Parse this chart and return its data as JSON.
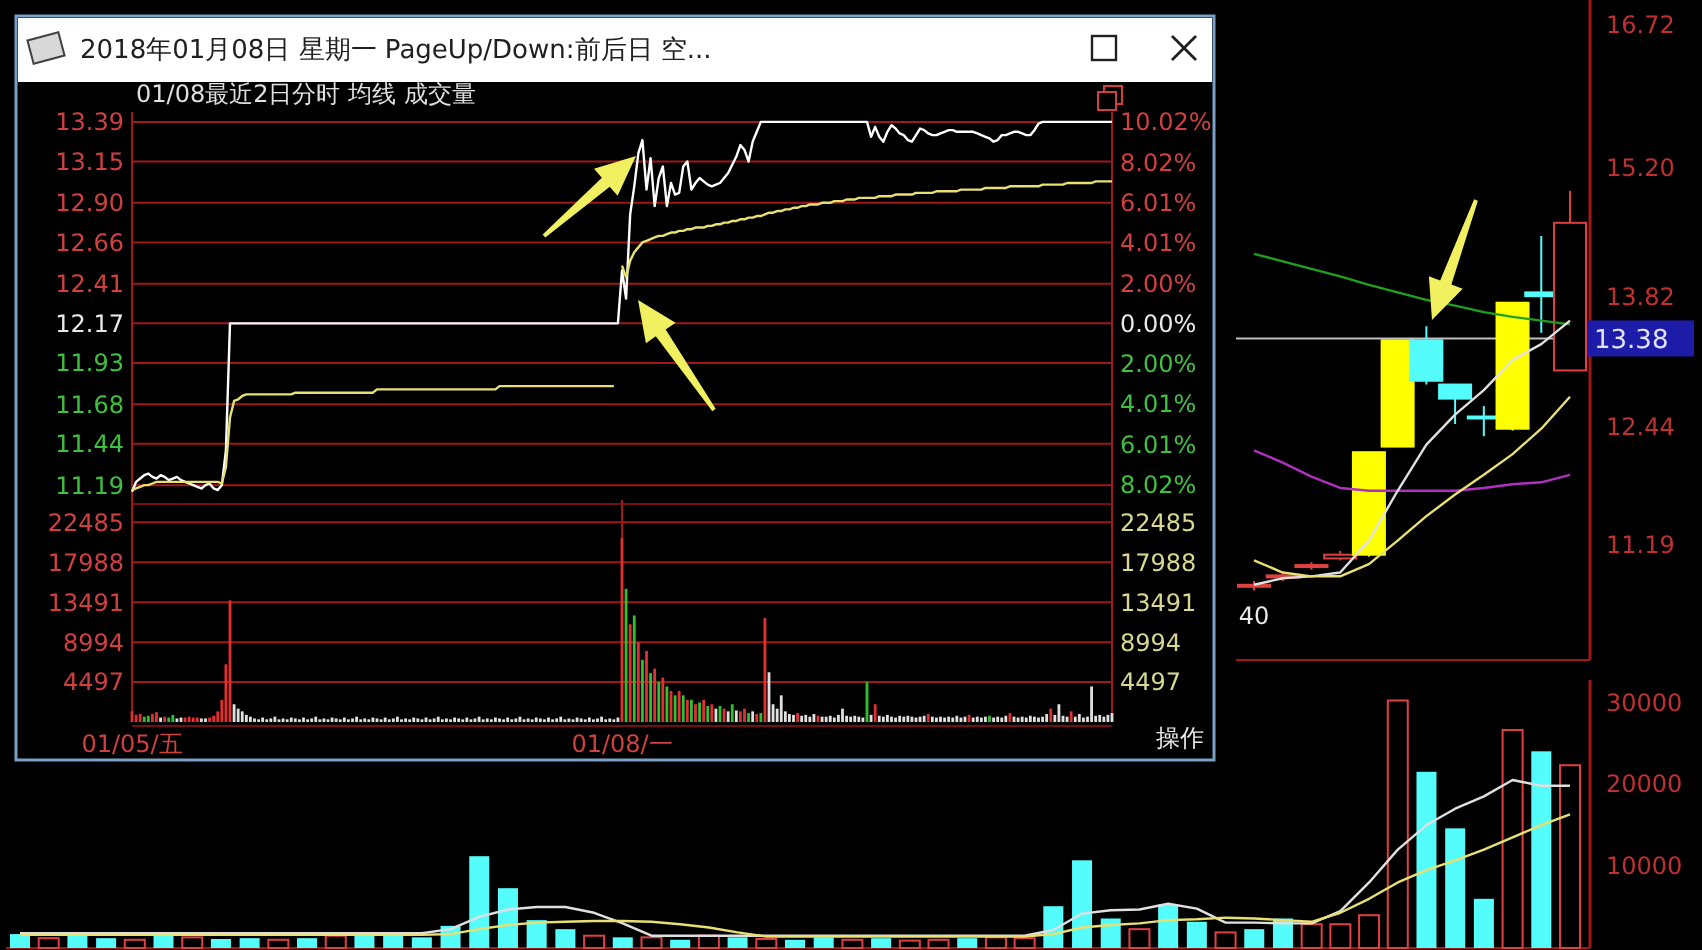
{
  "chart_data": [
    {
      "type": "line",
      "title": "2018年01月08日 星期一 PageUp/Down:前后日 空...",
      "subtitle": "01/08最近2日分时 均线 成交量",
      "categories": [
        null,
        null,
        null,
        null,
        null,
        null,
        null,
        null,
        null,
        null,
        null,
        null,
        null,
        null,
        null,
        null,
        null,
        null,
        null,
        null,
        null,
        null,
        null,
        null,
        null,
        null,
        null,
        null,
        null,
        null,
        null,
        null,
        null,
        null,
        null,
        null,
        null,
        null,
        null,
        null,
        null,
        null,
        null,
        null,
        null,
        null,
        null,
        null,
        null,
        null,
        null,
        null,
        null,
        null,
        null,
        null,
        null,
        null,
        null,
        null,
        null,
        null,
        null,
        null,
        null,
        null,
        null,
        null,
        null,
        null,
        null,
        null,
        null,
        null,
        null,
        null,
        null,
        null,
        null,
        null,
        null,
        null,
        null,
        null,
        null,
        null,
        null,
        null,
        null,
        null,
        null,
        null,
        null,
        null,
        null,
        null,
        null,
        null,
        null,
        null,
        null,
        null,
        null,
        null,
        null,
        null,
        null,
        null,
        null,
        null,
        null,
        null,
        null,
        null,
        null,
        null,
        null,
        null,
        null,
        null,
        null,
        null,
        null,
        null,
        null,
        null,
        null,
        null,
        null,
        null,
        null,
        null,
        null,
        null,
        null,
        null,
        null,
        null,
        null,
        null,
        null,
        null,
        null,
        null,
        null,
        null,
        null,
        null,
        null,
        null,
        null,
        null,
        null,
        null,
        null,
        null,
        null,
        null,
        null,
        null,
        null,
        null,
        null,
        null,
        null,
        null,
        null,
        null,
        null,
        null,
        null,
        null,
        null,
        null,
        null,
        null,
        null,
        null,
        null,
        null,
        null,
        null,
        null,
        null,
        null,
        null,
        null,
        null,
        null,
        null,
        null,
        null,
        null,
        null,
        null,
        null,
        null,
        null,
        null,
        null,
        null,
        null,
        null,
        null,
        null,
        null,
        null,
        null,
        null,
        null,
        null,
        null,
        null,
        null,
        null,
        null,
        null,
        null,
        null,
        null,
        null,
        null,
        null,
        null,
        null,
        null,
        null,
        null,
        null,
        null,
        null,
        null,
        null,
        null,
        null,
        null,
        null,
        null,
        null,
        null,
        null
      ],
      "ylim": [
        11.1,
        13.45
      ],
      "yticks": [
        {
          "value": 13.39,
          "label": "13.39"
        },
        {
          "value": 13.15,
          "label": "13.15"
        },
        {
          "value": 12.9,
          "label": "12.90"
        },
        {
          "value": 12.66,
          "label": "12.66"
        },
        {
          "value": 12.41,
          "label": "12.41"
        },
        {
          "value": 12.17,
          "label": "12.17"
        },
        {
          "value": 11.93,
          "label": "11.93"
        },
        {
          "value": 11.68,
          "label": "11.68"
        },
        {
          "value": 11.44,
          "label": "11.44"
        },
        {
          "value": 11.19,
          "label": "11.19"
        }
      ],
      "y2lim": [
        -8.79,
        10.52
      ],
      "y2ticks": [
        {
          "value": 10.02,
          "label": "10.02%"
        },
        {
          "value": 8.02,
          "label": "8.02%"
        },
        {
          "value": 6.01,
          "label": "6.01%"
        },
        {
          "value": 4.01,
          "label": "4.01%"
        },
        {
          "value": 2,
          "label": "2.00%"
        },
        {
          "value": 0,
          "label": "0.00%"
        },
        {
          "value": -2,
          "label": "2.00%"
        },
        {
          "value": -4.01,
          "label": "4.01%"
        },
        {
          "value": -6.01,
          "label": "6.01%"
        },
        {
          "value": -8.02,
          "label": "8.02%"
        }
      ],
      "grid": "y",
      "tick_labels": "y",
      "series": [
        {
          "color": "#ffffff",
          "values": [
            11.15,
            11.21,
            11.23,
            11.25,
            11.26,
            11.24,
            11.23,
            11.25,
            11.24,
            11.22,
            11.23,
            11.24,
            11.22,
            11.21,
            11.2,
            11.19,
            11.18,
            11.17,
            11.19,
            11.2,
            11.17,
            11.16,
            11.19,
            11.4,
            12.17,
            12.17,
            12.17,
            12.17,
            12.17,
            12.17,
            12.17,
            12.17,
            12.17,
            12.17,
            12.17,
            12.17,
            12.17,
            12.17,
            12.17,
            12.17,
            12.17,
            12.17,
            12.17,
            12.17,
            12.17,
            12.17,
            12.17,
            12.17,
            12.17,
            12.17,
            12.17,
            12.17,
            12.17,
            12.17,
            12.17,
            12.17,
            12.17,
            12.17,
            12.17,
            12.17,
            12.17,
            12.17,
            12.17,
            12.17,
            12.17,
            12.17,
            12.17,
            12.17,
            12.17,
            12.17,
            12.17,
            12.17,
            12.17,
            12.17,
            12.17,
            12.17,
            12.17,
            12.17,
            12.17,
            12.17,
            12.17,
            12.17,
            12.17,
            12.17,
            12.17,
            12.17,
            12.17,
            12.17,
            12.17,
            12.17,
            12.17,
            12.17,
            12.17,
            12.17,
            12.17,
            12.17,
            12.17,
            12.17,
            12.17,
            12.17,
            12.17,
            12.17,
            12.17,
            12.17,
            12.17,
            12.17,
            12.17,
            12.17,
            12.17,
            12.17,
            12.17,
            12.17,
            12.17,
            12.17,
            12.17,
            12.17,
            12.17,
            12.17,
            12.17,
            12.17,
            12.49,
            12.32,
            12.83,
            13.0,
            13.2,
            13.28,
            12.98,
            13.17,
            12.88,
            13.05,
            13.12,
            12.88,
            13.02,
            12.95,
            12.96,
            13.12,
            13.15,
            12.98,
            13.02,
            13.05,
            13.03,
            13.01,
            13.0,
            13.01,
            13.02,
            13.05,
            13.08,
            13.13,
            13.18,
            13.25,
            13.22,
            13.15,
            13.27,
            13.33,
            13.39,
            13.39,
            13.39,
            13.39,
            13.39,
            13.39,
            13.39,
            13.39,
            13.39,
            13.39,
            13.39,
            13.39,
            13.39,
            13.39,
            13.39,
            13.39,
            13.39,
            13.39,
            13.39,
            13.39,
            13.39,
            13.39,
            13.39,
            13.39,
            13.39,
            13.39,
            13.39,
            13.3,
            13.36,
            13.3,
            13.27,
            13.33,
            13.37,
            13.35,
            13.32,
            13.31,
            13.28,
            13.27,
            13.31,
            13.35,
            13.34,
            13.32,
            13.31,
            13.31,
            13.32,
            13.33,
            13.34,
            13.34,
            13.33,
            13.33,
            13.33,
            13.33,
            13.33,
            13.32,
            13.31,
            13.3,
            13.29,
            13.27,
            13.28,
            13.31,
            13.31,
            13.32,
            13.33,
            13.33,
            13.32,
            13.31,
            13.31,
            13.34,
            13.38,
            13.39,
            13.39,
            13.39,
            13.39,
            13.39,
            13.39,
            13.39,
            13.39,
            13.39,
            13.39,
            13.39,
            13.39,
            13.39,
            13.39,
            13.39,
            13.39,
            13.39,
            13.39
          ]
        },
        {
          "color": "#e8e070",
          "values": [
            11.16,
            11.17,
            11.18,
            11.19,
            11.19,
            11.2,
            11.21,
            11.21,
            11.21,
            11.21,
            11.21,
            11.21,
            11.21,
            11.21,
            11.21,
            11.21,
            11.21,
            11.21,
            11.21,
            11.21,
            11.21,
            11.21,
            11.2,
            11.3,
            11.6,
            11.7,
            11.71,
            11.73,
            11.74,
            11.74,
            11.74,
            11.74,
            11.74,
            11.74,
            11.74,
            11.74,
            11.74,
            11.74,
            11.74,
            11.74,
            11.75,
            11.75,
            11.75,
            11.75,
            11.75,
            11.75,
            11.75,
            11.75,
            11.75,
            11.75,
            11.75,
            11.75,
            11.75,
            11.75,
            11.75,
            11.75,
            11.75,
            11.75,
            11.75,
            11.75,
            11.77,
            11.77,
            11.77,
            11.77,
            11.77,
            11.77,
            11.77,
            11.77,
            11.77,
            11.77,
            11.77,
            11.77,
            11.77,
            11.77,
            11.77,
            11.77,
            11.77,
            11.77,
            11.77,
            11.77,
            11.77,
            11.77,
            11.77,
            11.77,
            11.77,
            11.77,
            11.77,
            11.77,
            11.77,
            11.77,
            11.79,
            11.79,
            11.79,
            11.79,
            11.79,
            11.79,
            11.79,
            11.79,
            11.79,
            11.79,
            11.79,
            11.79,
            11.79,
            11.79,
            11.79,
            11.79,
            11.79,
            11.79,
            11.79,
            11.79,
            11.79,
            11.79,
            11.79,
            11.79,
            11.79,
            11.79,
            11.79,
            11.79,
            11.79,
            null,
            12.52,
            12.45,
            12.55,
            12.6,
            12.63,
            12.66,
            12.67,
            12.68,
            12.69,
            12.7,
            12.7,
            12.71,
            12.72,
            12.72,
            12.73,
            12.73,
            12.74,
            12.74,
            12.75,
            12.75,
            12.75,
            12.76,
            12.76,
            12.77,
            12.77,
            12.78,
            12.78,
            12.79,
            12.79,
            12.8,
            12.8,
            12.81,
            12.81,
            12.82,
            12.82,
            12.83,
            12.84,
            12.84,
            12.85,
            12.85,
            12.86,
            12.86,
            12.87,
            12.87,
            12.88,
            12.88,
            12.89,
            12.89,
            12.89,
            12.9,
            12.9,
            12.9,
            12.91,
            12.91,
            12.91,
            12.92,
            12.92,
            12.92,
            12.93,
            12.93,
            12.93,
            12.93,
            12.93,
            12.94,
            12.94,
            12.94,
            12.94,
            12.95,
            12.95,
            12.95,
            12.95,
            12.95,
            12.96,
            12.96,
            12.96,
            12.96,
            12.96,
            12.97,
            12.97,
            12.97,
            12.97,
            12.97,
            12.97,
            12.98,
            12.98,
            12.98,
            12.98,
            12.98,
            12.98,
            12.99,
            12.99,
            12.99,
            12.99,
            12.99,
            12.99,
            13.0,
            13.0,
            13.0,
            13.0,
            13.0,
            13.0,
            13.0,
            13.0,
            13.01,
            13.01,
            13.01,
            13.01,
            13.01,
            13.01,
            13.02,
            13.02,
            13.02,
            13.02,
            13.02,
            13.02,
            13.02,
            13.03,
            13.03,
            13.03,
            13.03,
            13.03
          ]
        }
      ]
    },
    {
      "type": "bar",
      "categories": [
        "01/05/五",
        null,
        null,
        null,
        null,
        null,
        null,
        null,
        null,
        null,
        null,
        null,
        null,
        null,
        null,
        null,
        null,
        null,
        null,
        null,
        null,
        null,
        null,
        null,
        null,
        null,
        null,
        null,
        null,
        null,
        null,
        null,
        null,
        null,
        null,
        null,
        null,
        null,
        null,
        null,
        null,
        null,
        null,
        null,
        null,
        null,
        null,
        null,
        null,
        null,
        null,
        null,
        null,
        null,
        null,
        null,
        null,
        null,
        null,
        null,
        null,
        null,
        null,
        null,
        null,
        null,
        null,
        null,
        null,
        null,
        null,
        null,
        null,
        null,
        null,
        null,
        null,
        null,
        null,
        null,
        null,
        null,
        null,
        null,
        null,
        null,
        null,
        null,
        null,
        null,
        null,
        null,
        null,
        null,
        null,
        null,
        null,
        null,
        null,
        null,
        null,
        null,
        null,
        null,
        null,
        null,
        null,
        null,
        null,
        null,
        null,
        null,
        null,
        null,
        null,
        null,
        null,
        null,
        null,
        null,
        "01/08/一",
        null,
        null,
        null,
        null,
        null,
        null,
        null,
        null,
        null,
        null,
        null,
        null,
        null,
        null,
        null,
        null,
        null,
        null,
        null,
        null,
        null,
        null,
        null,
        null,
        null,
        null,
        null,
        null,
        null,
        null,
        null,
        null,
        null,
        null,
        null,
        null,
        null,
        null,
        null,
        null,
        null,
        null,
        null,
        null,
        null,
        null,
        null,
        null,
        null,
        null,
        null,
        null,
        null,
        null,
        null,
        null,
        null,
        null,
        null,
        null,
        null,
        null,
        null,
        null,
        null,
        null,
        null,
        null,
        null,
        null,
        null,
        null,
        null,
        null,
        null,
        null,
        null,
        null,
        null,
        null,
        null,
        null,
        null,
        null,
        null,
        null,
        null,
        null,
        null,
        null,
        null,
        null,
        null,
        null,
        null,
        null,
        null,
        null,
        null,
        null,
        null,
        null,
        null,
        null,
        null,
        null,
        null,
        null,
        null,
        null,
        null,
        null,
        null,
        null,
        null,
        null,
        null,
        null,
        null,
        null
      ],
      "ylim": [
        0,
        25000
      ],
      "yticks": [
        4497,
        8994,
        13491,
        17988,
        22485
      ],
      "y2lim": [
        0,
        25000
      ],
      "y2ticks": [
        4497,
        8994,
        13491,
        17988,
        22485
      ],
      "grid": true,
      "annotations": [
        "操作"
      ],
      "values": [
        1200,
        800,
        900,
        600,
        700,
        900,
        1100,
        500,
        600,
        500,
        800,
        400,
        500,
        500,
        600,
        500,
        500,
        400,
        400,
        500,
        700,
        1200,
        2500,
        6500,
        13700,
        2000,
        1500,
        1200,
        800,
        600,
        400,
        300,
        500,
        300,
        400,
        600,
        300,
        400,
        300,
        500,
        400,
        300,
        500,
        300,
        400,
        600,
        300,
        400,
        300,
        500,
        400,
        300,
        500,
        300,
        400,
        600,
        300,
        400,
        300,
        500,
        400,
        300,
        500,
        300,
        400,
        600,
        300,
        400,
        300,
        500,
        400,
        300,
        500,
        300,
        400,
        600,
        300,
        400,
        300,
        500,
        400,
        300,
        500,
        300,
        400,
        600,
        300,
        400,
        300,
        500,
        400,
        300,
        500,
        300,
        400,
        600,
        300,
        400,
        300,
        500,
        400,
        300,
        500,
        300,
        400,
        600,
        300,
        400,
        300,
        500,
        400,
        300,
        500,
        300,
        400,
        600,
        300,
        400,
        300,
        500,
        20700,
        15000,
        11000,
        12000,
        9000,
        7000,
        8000,
        5500,
        6000,
        4500,
        5000,
        4000,
        3500,
        3000,
        3500,
        3000,
        2500,
        2500,
        2000,
        2200,
        2500,
        1800,
        2000,
        1500,
        1800,
        1500,
        1200,
        2000,
        1300,
        1200,
        1500,
        1000,
        1200,
        900,
        1000,
        11700,
        5600,
        2000,
        1500,
        3000,
        1200,
        900,
        800,
        1000,
        700,
        800,
        600,
        900,
        700,
        600,
        600,
        700,
        500,
        800,
        1500,
        700,
        600,
        700,
        600,
        500,
        4500,
        800,
        2000,
        700,
        600,
        800,
        600,
        500,
        700,
        600,
        700,
        600,
        500,
        600,
        700,
        900,
        600,
        500,
        600,
        500,
        600,
        500,
        700,
        500,
        600,
        800,
        500,
        600,
        500,
        600,
        700,
        500,
        600,
        500,
        700,
        1000,
        600,
        500,
        600,
        500,
        700,
        600,
        500,
        600,
        900,
        1500,
        800,
        2000,
        700,
        600,
        1200,
        600,
        900,
        500,
        600,
        4000,
        700,
        800,
        600,
        800,
        1000
      ],
      "colors": [
        "#e03030",
        "#e03030",
        "#e03030",
        "#30c030",
        "#30c030",
        "#e03030",
        "#e03030",
        "#e0e0e0",
        "#e03030",
        "#30c030",
        "#30c030",
        "#e0e0e0",
        "#e0e0e0",
        "#e03030",
        "#e03030",
        "#e03030",
        "#e03030",
        "#e0e0e0",
        "#e0e0e0",
        "#e03030",
        "#e03030",
        "#e03030",
        "#e03030",
        "#e03030",
        "#e03030",
        "#e0e0e0",
        "#e0e0e0",
        "#e0e0e0",
        "#e0e0e0",
        "#e0e0e0",
        "#e0e0e0",
        "#e0e0e0",
        "#e0e0e0",
        "#e0e0e0",
        "#e0e0e0",
        "#e0e0e0",
        "#e0e0e0",
        "#e0e0e0",
        "#e0e0e0",
        "#e0e0e0",
        "#e0e0e0",
        "#e0e0e0",
        "#e0e0e0",
        "#e0e0e0",
        "#e0e0e0",
        "#e0e0e0",
        "#e0e0e0",
        "#e0e0e0",
        "#e0e0e0",
        "#e0e0e0",
        "#e0e0e0",
        "#e0e0e0",
        "#e0e0e0",
        "#e0e0e0",
        "#e0e0e0",
        "#e0e0e0",
        "#e0e0e0",
        "#e0e0e0",
        "#e0e0e0",
        "#e0e0e0",
        "#e0e0e0",
        "#e0e0e0",
        "#e0e0e0",
        "#e0e0e0",
        "#e0e0e0",
        "#e0e0e0",
        "#e0e0e0",
        "#e0e0e0",
        "#e0e0e0",
        "#e0e0e0",
        "#e0e0e0",
        "#e0e0e0",
        "#e0e0e0",
        "#e0e0e0",
        "#e0e0e0",
        "#e0e0e0",
        "#e0e0e0",
        "#e0e0e0",
        "#e0e0e0",
        "#e0e0e0",
        "#e0e0e0",
        "#e0e0e0",
        "#e0e0e0",
        "#e0e0e0",
        "#e0e0e0",
        "#e0e0e0",
        "#e0e0e0",
        "#e0e0e0",
        "#e0e0e0",
        "#e0e0e0",
        "#e0e0e0",
        "#e0e0e0",
        "#e0e0e0",
        "#e0e0e0",
        "#e0e0e0",
        "#e0e0e0",
        "#e0e0e0",
        "#e0e0e0",
        "#e0e0e0",
        "#e0e0e0",
        "#e0e0e0",
        "#e0e0e0",
        "#e0e0e0",
        "#e0e0e0",
        "#e0e0e0",
        "#e0e0e0",
        "#e0e0e0",
        "#e0e0e0",
        "#e0e0e0",
        "#e0e0e0",
        "#e0e0e0",
        "#e0e0e0",
        "#e0e0e0",
        "#e0e0e0",
        "#e0e0e0",
        "#e0e0e0",
        "#e0e0e0",
        "#e0e0e0",
        "#e0e0e0",
        "#e0e0e0",
        "#e03030",
        "#30c030",
        "#e03030",
        "#30c030",
        "#e03030",
        "#30c030",
        "#e03030",
        "#30c030",
        "#e03030",
        "#30c030",
        "#e03030",
        "#30c030",
        "#e03030",
        "#30c030",
        "#e03030",
        "#30c030",
        "#e03030",
        "#30c030",
        "#e03030",
        "#30c030",
        "#e03030",
        "#30c030",
        "#e03030",
        "#e0e0e0",
        "#30c030",
        "#e03030",
        "#e0e0e0",
        "#30c030",
        "#e0e0e0",
        "#e03030",
        "#e03030",
        "#30c030",
        "#e0e0e0",
        "#e03030",
        "#30c030",
        "#e03030",
        "#e0e0e0",
        "#e0e0e0",
        "#e0e0e0",
        "#e0e0e0",
        "#e0e0e0",
        "#e0e0e0",
        "#e0e0e0",
        "#e03030",
        "#e0e0e0",
        "#e0e0e0",
        "#e0e0e0",
        "#e0e0e0",
        "#e03030",
        "#e0e0e0",
        "#e0e0e0",
        "#e0e0e0",
        "#e0e0e0",
        "#e0e0e0",
        "#e0e0e0",
        "#e0e0e0",
        "#e0e0e0",
        "#e0e0e0",
        "#e0e0e0",
        "#e0e0e0",
        "#30c030",
        "#e0e0e0",
        "#e03030",
        "#e0e0e0",
        "#e0e0e0",
        "#e0e0e0",
        "#e0e0e0",
        "#e0e0e0",
        "#e0e0e0",
        "#e0e0e0",
        "#e0e0e0",
        "#e0e0e0",
        "#e0e0e0",
        "#e0e0e0",
        "#e0e0e0",
        "#e03030",
        "#e0e0e0",
        "#e0e0e0",
        "#e0e0e0",
        "#e0e0e0",
        "#e0e0e0",
        "#e0e0e0",
        "#e0e0e0",
        "#e0e0e0",
        "#e0e0e0",
        "#e03030",
        "#e0e0e0",
        "#e0e0e0",
        "#e0e0e0",
        "#e0e0e0",
        "#30c030",
        "#e0e0e0",
        "#e0e0e0",
        "#e0e0e0",
        "#e0e0e0",
        "#e03030",
        "#e0e0e0",
        "#e0e0e0",
        "#e0e0e0",
        "#e0e0e0",
        "#e0e0e0",
        "#e0e0e0",
        "#e0e0e0",
        "#e0e0e0",
        "#e0e0e0",
        "#e03030",
        "#e0e0e0",
        "#e0e0e0",
        "#e0e0e0",
        "#e0e0e0",
        "#e03030",
        "#e0e0e0",
        "#e0e0e0",
        "#e0e0e0",
        "#e0e0e0",
        "#e0e0e0",
        "#e0e0e0",
        "#e0e0e0",
        "#e0e0e0",
        "#e0e0e0",
        "#e0e0e0"
      ]
    },
    {
      "type": "candlestick",
      "categories": [
        null,
        null,
        null,
        null,
        null,
        null,
        null,
        null,
        null,
        null,
        null,
        null
      ],
      "ohlc": [
        [
          10.76,
          10.8,
          10.7,
          10.76
        ],
        [
          10.84,
          10.88,
          10.8,
          10.86
        ],
        [
          10.95,
          11.0,
          10.92,
          10.97
        ],
        [
          11.04,
          11.12,
          11.02,
          11.08
        ],
        [
          11.08,
          12.17,
          11.06,
          12.17
        ],
        [
          12.23,
          13.36,
          12.23,
          13.36
        ],
        [
          13.36,
          13.51,
          12.89,
          12.93
        ],
        [
          12.89,
          12.89,
          12.47,
          12.74
        ],
        [
          12.55,
          12.66,
          12.34,
          12.55
        ],
        [
          12.42,
          13.76,
          12.4,
          13.76
        ],
        [
          13.87,
          14.47,
          13.44,
          13.83
        ],
        [
          13.04,
          14.95,
          13.04,
          14.61
        ]
      ],
      "colors": [
        "#e04040",
        "#e04040",
        "#e04040",
        "#e04040",
        "#ffff00",
        "#ffff00",
        "#54fcfc",
        "#54fcfc",
        "#54fcfc",
        "#ffff00",
        "#54fcfc",
        "#e04040"
      ],
      "ylim": [
        9.96,
        16.98
      ],
      "yticks": [
        16.72,
        {
          "value": 15.2,
          "label": "15.20"
        },
        13.82,
        12.44,
        11.19
      ],
      "tick_labels": "y",
      "series": [
        {
          "type": "line",
          "color": "#20a020",
          "values": [
            14.28,
            14.2,
            14.12,
            14.04,
            13.95,
            13.87,
            13.79,
            13.73,
            13.66,
            13.61,
            13.57,
            13.53
          ]
        },
        {
          "type": "line",
          "color": "#b030c0",
          "values": [
            12.19,
            12.06,
            11.91,
            11.79,
            11.76,
            11.76,
            11.76,
            11.76,
            11.79,
            11.83,
            11.85,
            11.93
          ]
        },
        {
          "type": "line",
          "color": "#e0e0e0",
          "values": [
            10.76,
            10.83,
            10.85,
            10.89,
            11.23,
            11.76,
            12.25,
            12.57,
            12.83,
            13.15,
            13.32,
            13.57
          ]
        },
        {
          "type": "line",
          "color": "#e8e070",
          "values": [
            11.02,
            10.89,
            10.85,
            10.85,
            10.98,
            11.23,
            11.49,
            11.72,
            11.93,
            12.15,
            12.42,
            12.76
          ]
        }
      ],
      "ref_lines": [
        {
          "axis": "y",
          "value": 13.38,
          "label": "13.38"
        }
      ],
      "annotations": [
        "40"
      ]
    },
    {
      "type": "bar",
      "categories": [
        null,
        null,
        null,
        null,
        null,
        null,
        null,
        null,
        null,
        null,
        null,
        null,
        null,
        null,
        null,
        null,
        null,
        null,
        null,
        null,
        null,
        null,
        null,
        null,
        null,
        null,
        null,
        null,
        null,
        null,
        null,
        null,
        null,
        null,
        null,
        null,
        null,
        null,
        null,
        null,
        null,
        null,
        null,
        null,
        null,
        null,
        null,
        null,
        null,
        null,
        null,
        null,
        null,
        null,
        null
      ],
      "ylim": [
        0,
        32700
      ],
      "yticks": [
        10000,
        20000,
        30000
      ],
      "tick_labels": "y",
      "series": [
        {
          "type": "bar",
          "values": [
            1700,
            1200,
            1500,
            1200,
            1000,
            1800,
            1300,
            1100,
            1200,
            1000,
            1200,
            1500,
            1800,
            1500,
            1300,
            2700,
            11200,
            7300,
            3400,
            2300,
            1500,
            1300,
            1300,
            1000,
            1500,
            1300,
            1100,
            1000,
            1300,
            1000,
            1200,
            900,
            1000,
            1200,
            1300,
            1200,
            5100,
            10700,
            3600,
            2300,
            5300,
            3200,
            1900,
            2300,
            3600,
            2900,
            2900,
            4000,
            30200,
            21500,
            14600,
            6000,
            26600,
            24000,
            22300
          ],
          "colors": [
            "#54fcfc",
            "#e04040",
            "#54fcfc",
            "#54fcfc",
            "#e04040",
            "#54fcfc",
            "#e04040",
            "#54fcfc",
            "#54fcfc",
            "#e04040",
            "#54fcfc",
            "#e04040",
            "#54fcfc",
            "#54fcfc",
            "#54fcfc",
            "#54fcfc",
            "#54fcfc",
            "#54fcfc",
            "#54fcfc",
            "#54fcfc",
            "#e04040",
            "#54fcfc",
            "#e04040",
            "#54fcfc",
            "#e04040",
            "#54fcfc",
            "#e04040",
            "#54fcfc",
            "#54fcfc",
            "#e04040",
            "#54fcfc",
            "#e04040",
            "#e04040",
            "#54fcfc",
            "#e04040",
            "#e04040",
            "#54fcfc",
            "#54fcfc",
            "#54fcfc",
            "#e04040",
            "#54fcfc",
            "#54fcfc",
            "#e04040",
            "#54fcfc",
            "#54fcfc",
            "#e04040",
            "#e04040",
            "#e04040",
            "#e04040",
            "#54fcfc",
            "#54fcfc",
            "#54fcfc",
            "#e04040",
            "#54fcfc",
            "#e04040"
          ]
        },
        {
          "type": "line",
          "color": "#e0e0e0",
          "values": [
            1800,
            1800,
            1800,
            1800,
            1800,
            1800,
            1800,
            1800,
            1800,
            1800,
            1800,
            1800,
            1800,
            1800,
            1800,
            2300,
            3800,
            4700,
            5000,
            5000,
            4300,
            3000,
            1500,
            1500,
            1500,
            1500,
            1500,
            1500,
            1500,
            1500,
            1500,
            1500,
            1500,
            1500,
            1500,
            1500,
            2200,
            4200,
            4600,
            4700,
            5400,
            4800,
            3100,
            3100,
            3000,
            3000,
            4500,
            8000,
            12000,
            15000,
            17000,
            18500,
            20500,
            19800,
            19800
          ]
        },
        {
          "type": "line",
          "color": "#e8e070",
          "values": [
            1600,
            1600,
            1600,
            1600,
            1600,
            1600,
            1600,
            1600,
            1600,
            1600,
            1600,
            1600,
            1600,
            1600,
            1600,
            1700,
            2300,
            2800,
            3100,
            3200,
            3300,
            3300,
            3200,
            2900,
            2500,
            1900,
            1400,
            1400,
            1400,
            1400,
            1400,
            1400,
            1400,
            1400,
            1400,
            1400,
            1700,
            2500,
            2800,
            3000,
            3400,
            3500,
            3700,
            3600,
            3400,
            3200,
            4300,
            6000,
            8000,
            9500,
            10700,
            12000,
            13500,
            15000,
            16300
          ]
        }
      ]
    }
  ]
}
